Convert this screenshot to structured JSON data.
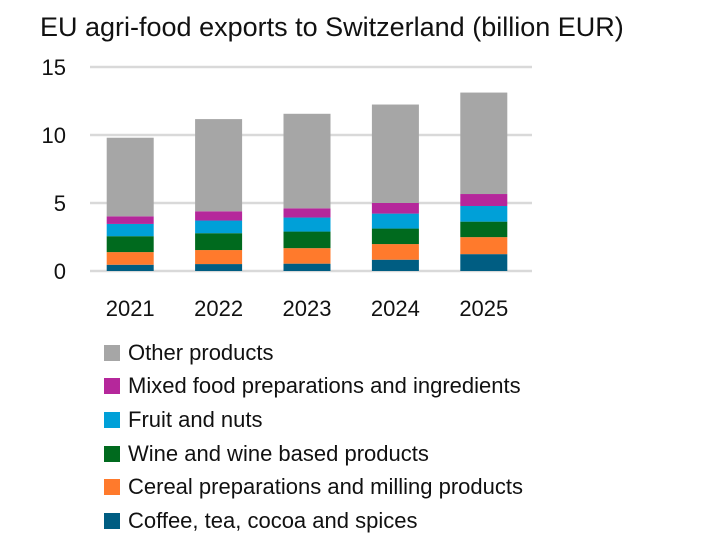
{
  "chart_data": {
    "type": "bar",
    "stacked": true,
    "title": "EU agri-food exports to Switzerland (billion EUR)",
    "xlabel": "",
    "ylabel": "",
    "categories": [
      "2021",
      "2022",
      "2023",
      "2024",
      "2025"
    ],
    "ylim": [
      0,
      15
    ],
    "yticks": [
      0,
      5,
      10,
      15
    ],
    "grid": true,
    "legend_position": "bottom",
    "series": [
      {
        "name": "Coffee, tea, cocoa and spices",
        "color": "#005d82",
        "values": [
          0.46,
          0.51,
          0.54,
          0.83,
          1.24
        ]
      },
      {
        "name": "Cereal preparations and milling products",
        "color": "#ff7a2c",
        "values": [
          0.93,
          1.03,
          1.14,
          1.15,
          1.25
        ]
      },
      {
        "name": "Wine and wine based products",
        "color": "#006a1e",
        "values": [
          1.17,
          1.24,
          1.22,
          1.14,
          1.14
        ]
      },
      {
        "name": "Fruit and nuts",
        "color": "#00a0d8",
        "values": [
          0.9,
          0.93,
          1.03,
          1.1,
          1.15
        ]
      },
      {
        "name": "Mixed food preparations and ingredients",
        "color": "#b5279b",
        "values": [
          0.56,
          0.68,
          0.68,
          0.78,
          0.88
        ]
      },
      {
        "name": "Other products",
        "color": "#a6a6a6",
        "values": [
          5.78,
          6.78,
          6.95,
          7.24,
          7.46
        ]
      }
    ]
  }
}
